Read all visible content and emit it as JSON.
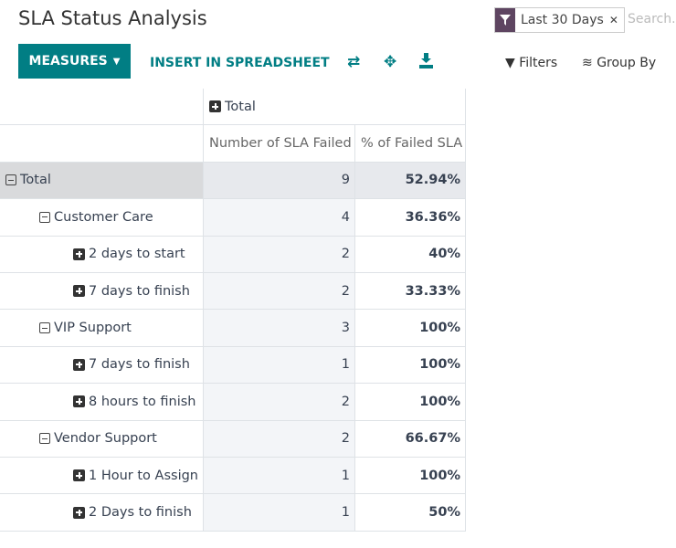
{
  "header": {
    "title": "SLA Status Analysis",
    "facet": "Last 30 Days",
    "search_placeholder": "Search..."
  },
  "toolbar": {
    "measures": "MEASURES",
    "insert": "INSERT IN SPREADSHEET",
    "filters": "Filters",
    "group_by": "Group By"
  },
  "table": {
    "column_header": "Total",
    "measures": [
      "Number of SLA Failed",
      "% of Failed SLA"
    ],
    "total": {
      "label": "Total",
      "count": "9",
      "percent": "52.94%",
      "groups": [
        {
          "label": "Customer Care",
          "count": "4",
          "percent": "36.36%",
          "children": [
            {
              "label": "2 days to start",
              "count": "2",
              "percent": "40%"
            },
            {
              "label": "7 days to finish",
              "count": "2",
              "percent": "33.33%"
            }
          ]
        },
        {
          "label": "VIP Support",
          "count": "3",
          "percent": "100%",
          "children": [
            {
              "label": "7 days to finish",
              "count": "1",
              "percent": "100%"
            },
            {
              "label": "8 hours to finish",
              "count": "2",
              "percent": "100%"
            }
          ]
        },
        {
          "label": "Vendor Support",
          "count": "2",
          "percent": "66.67%",
          "children": [
            {
              "label": "1 Hour to Assign",
              "count": "1",
              "percent": "100%"
            },
            {
              "label": "2 Days to finish",
              "count": "1",
              "percent": "50%"
            }
          ]
        }
      ]
    }
  }
}
